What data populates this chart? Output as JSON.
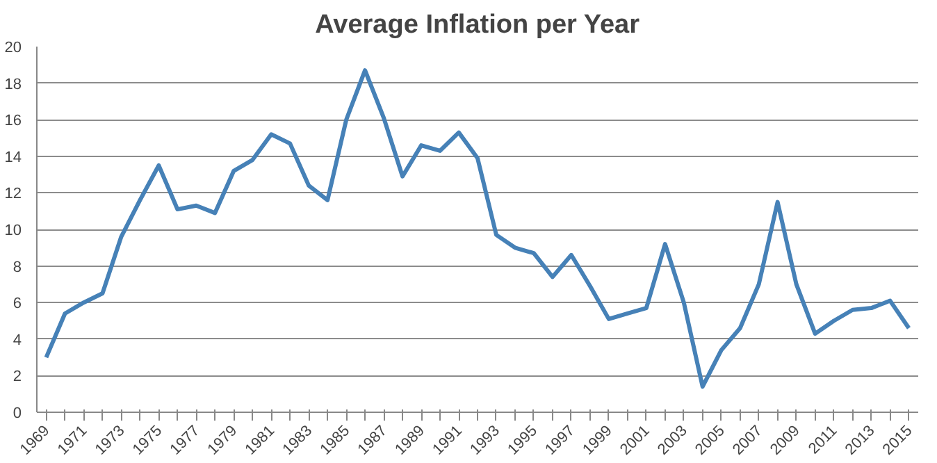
{
  "chart_data": {
    "type": "line",
    "title": "Average Inflation per Year",
    "categories": [
      "1969",
      null,
      "1971",
      null,
      "1973",
      null,
      "1975",
      null,
      "1977",
      null,
      "1979",
      null,
      "1981",
      null,
      "1983",
      null,
      "1985",
      null,
      "1987",
      null,
      "1989",
      null,
      "1991",
      null,
      "1993",
      null,
      "1995",
      null,
      "1997",
      null,
      "1999",
      null,
      "2001",
      null,
      "2003",
      null,
      "2005",
      null,
      "2007",
      null,
      "2009",
      null,
      "2011",
      null,
      "2013",
      null,
      "2015"
    ],
    "series": [
      {
        "color": "#4681b7",
        "values": [
          3.0,
          5.4,
          6.0,
          6.5,
          9.6,
          11.6,
          13.5,
          11.1,
          11.3,
          10.9,
          13.2,
          13.8,
          15.2,
          14.7,
          12.4,
          11.6,
          16.0,
          18.7,
          16.1,
          12.9,
          14.6,
          14.3,
          15.3,
          13.9,
          9.7,
          9.0,
          8.7,
          7.4,
          8.6,
          6.9,
          5.1,
          5.4,
          5.7,
          9.2,
          6.0,
          1.4,
          3.4,
          4.6,
          7.0,
          11.5,
          7.0,
          4.3,
          5.0,
          5.6,
          5.7,
          6.1,
          4.6
        ]
      }
    ],
    "ylim": [
      0,
      20
    ],
    "yticks": [
      0,
      2,
      4,
      6,
      8,
      10,
      12,
      14,
      16,
      18,
      20
    ],
    "grid": "y",
    "marker": "none",
    "line_style": "solid"
  }
}
